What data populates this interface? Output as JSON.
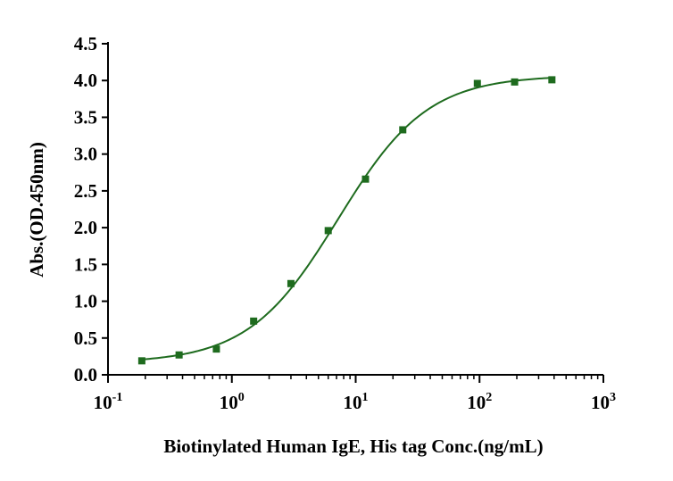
{
  "colors": {
    "series": "#1e6b1e",
    "axis": "#000000"
  },
  "chart_data": {
    "type": "scatter",
    "xlabel": "Biotinylated Human IgE, His tag Conc.(ng/mL)",
    "ylabel": "Abs.(OD.450nm)",
    "x_scale": "log",
    "xlim": [
      0.1,
      1000
    ],
    "ylim": [
      0,
      4.5
    ],
    "grid": false,
    "x_ticks": [
      {
        "base": "10",
        "exp": "-1",
        "value": 0.1
      },
      {
        "base": "10",
        "exp": "0",
        "value": 1
      },
      {
        "base": "10",
        "exp": "1",
        "value": 10
      },
      {
        "base": "10",
        "exp": "2",
        "value": 100
      },
      {
        "base": "10",
        "exp": "3",
        "value": 1000
      }
    ],
    "y_ticks": [
      "0.0",
      "0.5",
      "1.0",
      "1.5",
      "2.0",
      "2.5",
      "3.0",
      "3.5",
      "4.0",
      "4.5"
    ],
    "series": [
      {
        "x": [
          0.1875,
          0.375,
          0.75,
          1.5,
          3,
          6,
          12,
          24,
          96,
          192,
          384
        ],
        "y": [
          0.19,
          0.27,
          0.35,
          0.73,
          1.24,
          1.96,
          2.66,
          3.33,
          3.96,
          3.98,
          4.01
        ],
        "fit": {
          "model": "4PL",
          "bottom": 0.16,
          "top": 4.07,
          "ec50": 7.2,
          "hill": 1.2
        }
      }
    ]
  }
}
